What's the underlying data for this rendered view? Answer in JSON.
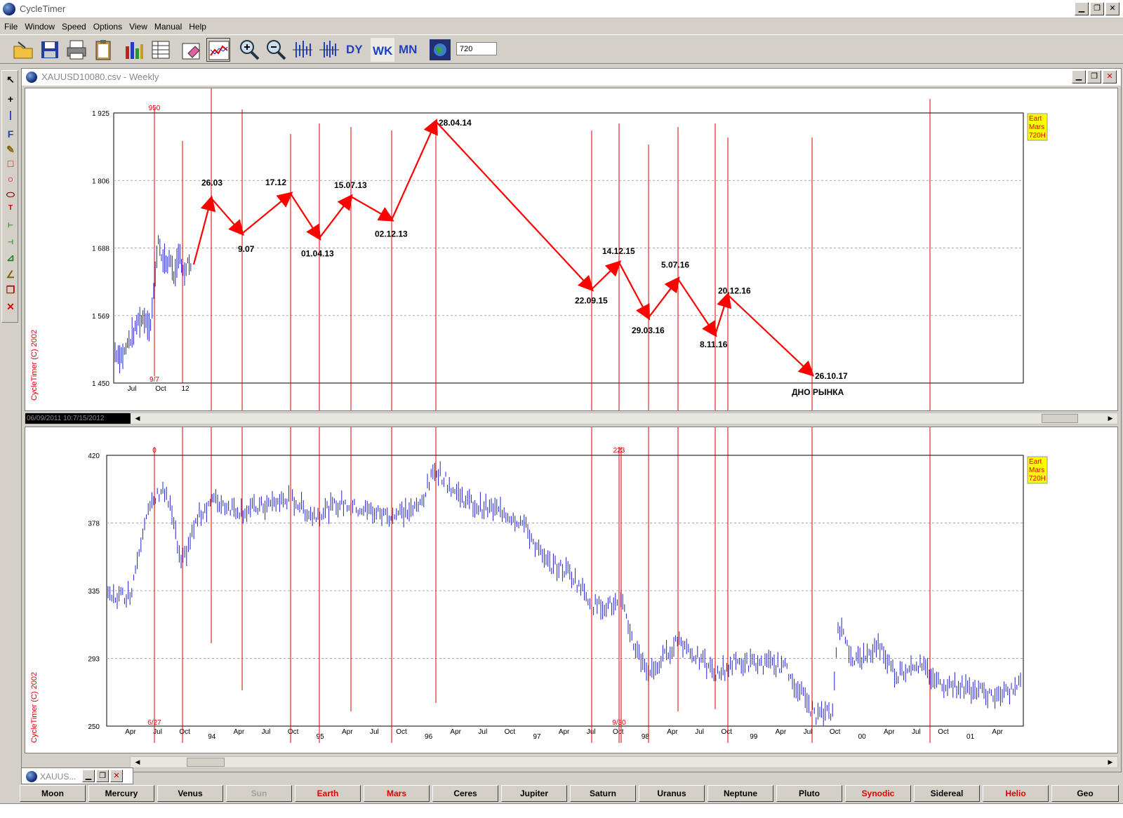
{
  "app": {
    "title": "CycleTimer"
  },
  "menu": [
    "File",
    "Window",
    "Speed",
    "Options",
    "View",
    "Manual",
    "Help"
  ],
  "toolbar": {
    "buttons": [
      "open-icon",
      "save-icon",
      "print-icon",
      "clipboard-icon",
      "bar-chart-icon",
      "table-icon",
      "eraser-icon",
      "chart-window-icon",
      "zoom-in-icon",
      "zoom-out-icon",
      "expand-time-icon",
      "compress-time-icon",
      "dy-icon",
      "wk-icon",
      "mn-icon",
      "globe-icon"
    ],
    "dy_label": "DY",
    "wk_label": "WK",
    "mn_label": "MN",
    "period_value": "720"
  },
  "child_window": {
    "title": "XAUUSD10080.csv - Weekly"
  },
  "minimized_window": {
    "title": "XAUUS..."
  },
  "colors": {
    "price": "#2020d0",
    "cycle": "#e00000",
    "arrow": "#ff0000",
    "legend_bg": "#ffff00"
  },
  "chart_data": [
    {
      "type": "line",
      "y_ticks": [
        "1 925",
        "1 806",
        "1 688",
        "1 569",
        "1 450"
      ],
      "ylim": [
        1450,
        1925
      ],
      "x_ticks": [
        "Jul",
        "Oct",
        "12"
      ],
      "top_marker": "950",
      "bottom_marker": "9/7",
      "watermark": "CycleTimer (C) 2002",
      "legend": [
        "Eart",
        "Mars",
        "720H"
      ],
      "annotations": [
        {
          "label": "26.03",
          "y": 1775
        },
        {
          "label": "9.07",
          "y": 1713
        },
        {
          "label": "17.12",
          "y": 1783
        },
        {
          "label": "01.04.13",
          "y": 1705
        },
        {
          "label": "15.07.13",
          "y": 1778
        },
        {
          "label": "02.12.13",
          "y": 1737
        },
        {
          "label": "28.04.14",
          "y": 1910
        },
        {
          "label": "22.09.15",
          "y": 1615
        },
        {
          "label": "14.12.15",
          "y": 1662
        },
        {
          "label": "29.03.16",
          "y": 1565
        },
        {
          "label": "5.07.16",
          "y": 1633
        },
        {
          "label": "8.11.16",
          "y": 1535
        },
        {
          "label": "20.12.16",
          "y": 1605
        },
        {
          "label": "26.10.17",
          "y": 1465
        }
      ],
      "footnote": "ДНО РЫНКА"
    },
    {
      "type": "line",
      "y_ticks": [
        "420",
        "378",
        "335",
        "293",
        "250"
      ],
      "ylim": [
        250,
        420
      ],
      "x_ticks": [
        "Apr",
        "Jul",
        "Oct",
        "94",
        "Apr",
        "Jul",
        "Oct",
        "95",
        "Apr",
        "Jul",
        "Oct",
        "96",
        "Apr",
        "Jul",
        "Oct",
        "97",
        "Apr",
        "Jul",
        "Oct",
        "98",
        "Apr",
        "Jul",
        "Oct",
        "99",
        "Apr",
        "Jul",
        "Oct",
        "00",
        "Apr",
        "Jul",
        "Oct",
        "01",
        "Apr"
      ],
      "top_markers": [
        "0",
        "223"
      ],
      "bottom_markers": [
        "6/27",
        "9/30"
      ],
      "watermark": "CycleTimer (C) 2002",
      "legend": [
        "Eart",
        "Mars",
        "720H"
      ]
    }
  ],
  "scroll_date_text": "06/09/2011 10:7/15/2012",
  "planets": [
    {
      "label": "Moon",
      "style": "normal"
    },
    {
      "label": "Mercury",
      "style": "normal"
    },
    {
      "label": "Venus",
      "style": "normal"
    },
    {
      "label": "Sun",
      "style": "gray"
    },
    {
      "label": "Earth",
      "style": "red"
    },
    {
      "label": "Mars",
      "style": "red"
    },
    {
      "label": "Ceres",
      "style": "normal"
    },
    {
      "label": "Jupiter",
      "style": "normal"
    },
    {
      "label": "Saturn",
      "style": "normal"
    },
    {
      "label": "Uranus",
      "style": "normal"
    },
    {
      "label": "Neptune",
      "style": "normal"
    },
    {
      "label": "Pluto",
      "style": "normal"
    },
    {
      "label": "Synodic",
      "style": "red"
    },
    {
      "label": "Sidereal",
      "style": "normal"
    },
    {
      "label": "Helio",
      "style": "red"
    },
    {
      "label": "Geo",
      "style": "normal"
    }
  ]
}
